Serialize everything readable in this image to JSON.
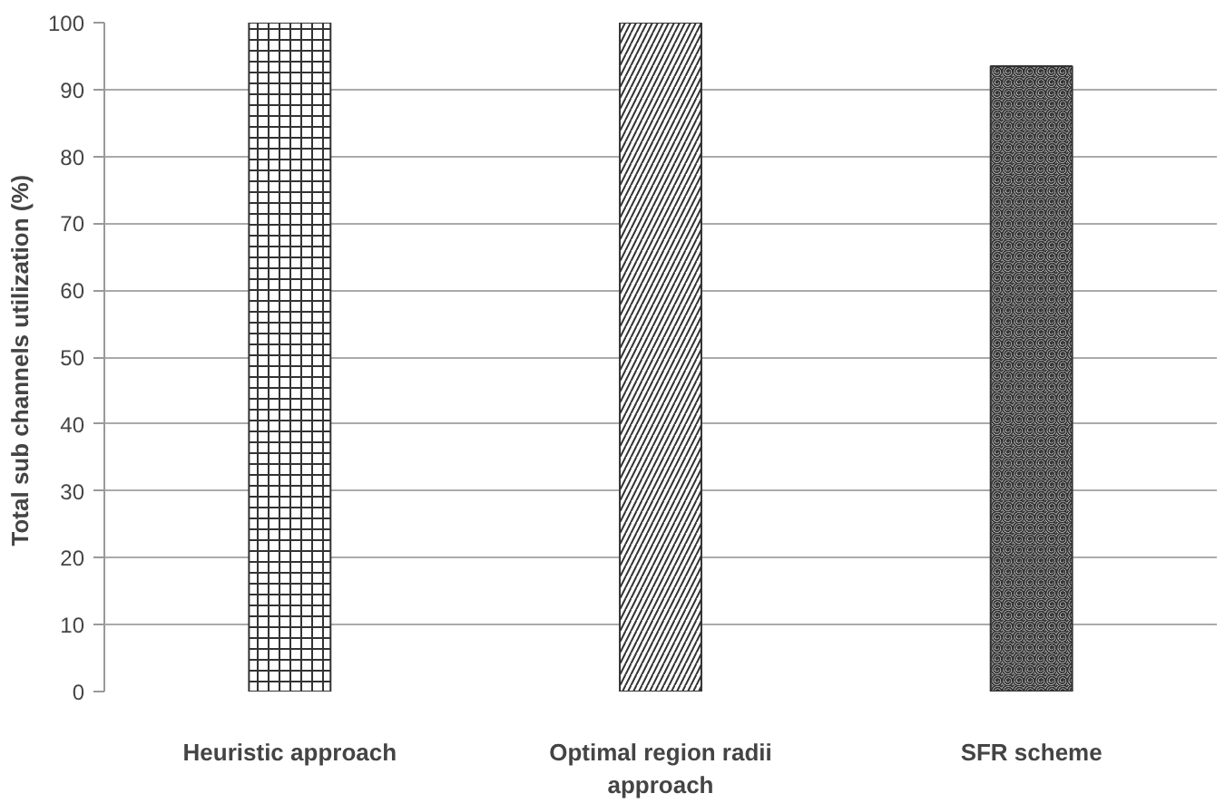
{
  "chart_data": {
    "type": "bar",
    "ylabel": "Total  sub channels utilization (%)",
    "categories": [
      "Heuristic approach",
      "Optimal region radii approach",
      "SFR scheme"
    ],
    "values": [
      100,
      100,
      93.5
    ],
    "colors": [
      "#333333",
      "#333333",
      "#333333"
    ],
    "ylim": [
      0,
      100
    ],
    "yticks": [
      0,
      10,
      20,
      30,
      40,
      50,
      60,
      70,
      80,
      90,
      100
    ],
    "grid": "y"
  }
}
